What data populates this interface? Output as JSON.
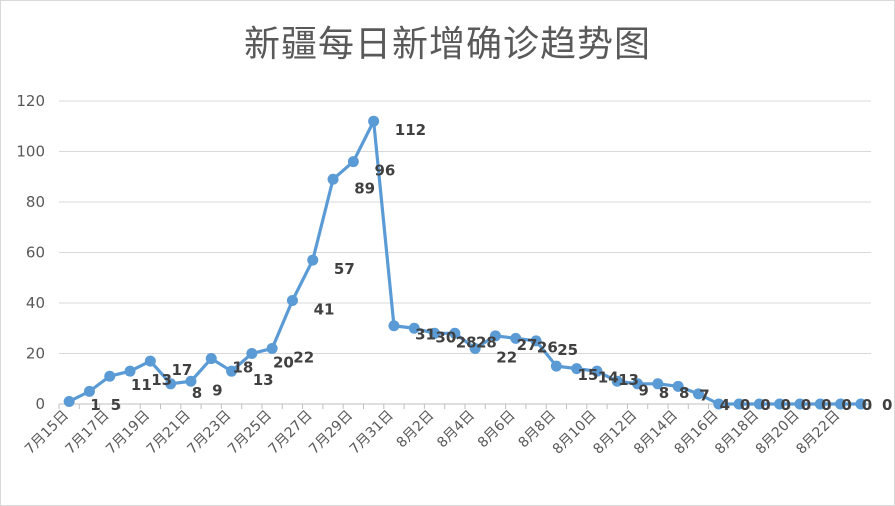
{
  "chart_data": {
    "type": "line",
    "title": "新疆每日新增确诊趋势图",
    "xlabel": "",
    "ylabel": "",
    "ylim": [
      0,
      120
    ],
    "yticks": [
      0,
      20,
      40,
      60,
      80,
      100,
      120
    ],
    "grid": true,
    "legend": "none",
    "series_color": "#5b9bd5",
    "categories": [
      "7月15日",
      "7月16日",
      "7月17日",
      "7月18日",
      "7月19日",
      "7月20日",
      "7月21日",
      "7月22日",
      "7月23日",
      "7月24日",
      "7月25日",
      "7月26日",
      "7月27日",
      "7月28日",
      "7月29日",
      "7月30日",
      "7月31日",
      "8月1日",
      "8月2日",
      "8月3日",
      "8月4日",
      "8月5日",
      "8月6日",
      "8月7日",
      "8月8日",
      "8月9日",
      "8月10日",
      "8月11日",
      "8月12日",
      "8月13日",
      "8月14日",
      "8月15日",
      "8月16日",
      "8月17日",
      "8月18日",
      "8月19日",
      "8月20日",
      "8月21日",
      "8月22日",
      "8月23日"
    ],
    "x_tick_labels": [
      "7月15日",
      "7月17日",
      "7月19日",
      "7月21日",
      "7月23日",
      "7月25日",
      "7月27日",
      "7月29日",
      "7月31日",
      "8月2日",
      "8月4日",
      "8月6日",
      "8月8日",
      "8月10日",
      "8月12日",
      "8月14日",
      "8月16日",
      "8月18日",
      "8月20日",
      "8月22日"
    ],
    "values": [
      1,
      5,
      11,
      13,
      17,
      8,
      9,
      18,
      13,
      20,
      22,
      41,
      57,
      89,
      96,
      112,
      31,
      30,
      28,
      28,
      22,
      27,
      26,
      25,
      15,
      14,
      13,
      9,
      8,
      8,
      7,
      4,
      0,
      0,
      0,
      0,
      0,
      0,
      0,
      0
    ],
    "data_labels": [
      {
        "text": "1",
        "index": 1
      },
      {
        "text": "5",
        "index": 2
      },
      {
        "text": "11",
        "index": 3
      },
      {
        "text": "13",
        "index": 4
      },
      {
        "text": "17",
        "index": 5
      },
      {
        "text": "8",
        "index": 6
      },
      {
        "text": "9",
        "index": 7
      },
      {
        "text": "18",
        "index": 8
      },
      {
        "text": "13",
        "index": 9
      },
      {
        "text": "20",
        "index": 10
      },
      {
        "text": "22",
        "index": 11
      },
      {
        "text": "41",
        "index": 12
      },
      {
        "text": "57",
        "index": 13
      },
      {
        "text": "89",
        "index": 14
      },
      {
        "text": "96",
        "index": 15
      },
      {
        "text": "112",
        "index": 16
      },
      {
        "text": "31",
        "index": 17
      },
      {
        "text": "30",
        "index": 18
      },
      {
        "text": "28",
        "index": 19
      },
      {
        "text": "28",
        "index": 20
      },
      {
        "text": "22",
        "index": 21
      },
      {
        "text": "27",
        "index": 22
      },
      {
        "text": "26",
        "index": 23
      },
      {
        "text": "25",
        "index": 24
      },
      {
        "text": "15",
        "index": 25
      },
      {
        "text": "14",
        "index": 26
      },
      {
        "text": "13",
        "index": 27
      },
      {
        "text": "9",
        "index": 28
      },
      {
        "text": "8",
        "index": 29
      },
      {
        "text": "8",
        "index": 30
      },
      {
        "text": "7",
        "index": 31
      },
      {
        "text": "4",
        "index": 32
      },
      {
        "text": "0",
        "index": 33
      },
      {
        "text": "0",
        "index": 34
      },
      {
        "text": "0",
        "index": 35
      },
      {
        "text": "0",
        "index": 36
      },
      {
        "text": "0",
        "index": 37
      },
      {
        "text": "0",
        "index": 38
      },
      {
        "text": "0",
        "index": 39
      },
      {
        "text": "0",
        "index": 40
      }
    ]
  }
}
